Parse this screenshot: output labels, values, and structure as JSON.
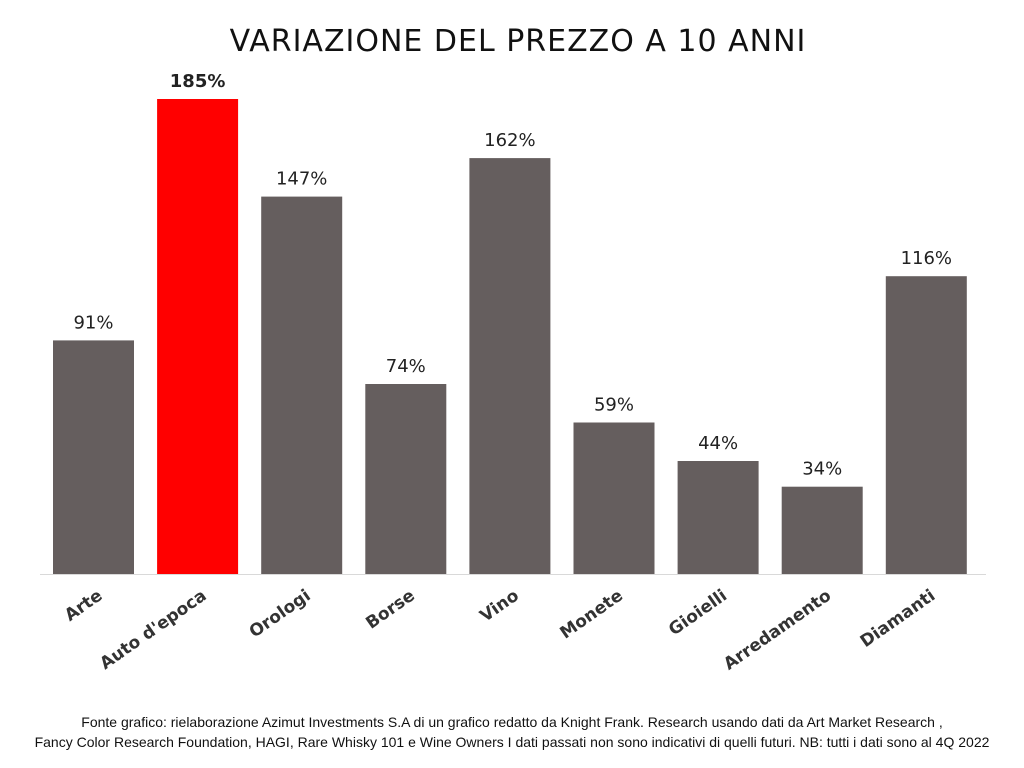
{
  "chart_data": {
    "type": "bar",
    "title": "VARIAZIONE DEL PREZZO A 10 ANNI",
    "xlabel": "",
    "ylabel": "",
    "ylim": [
      0,
      200
    ],
    "grid": false,
    "categories": [
      "Arte",
      "Auto d'epoca",
      "Orologi",
      "Borse",
      "Vino",
      "Monete",
      "Gioielli",
      "Arredamento",
      "Diamanti"
    ],
    "values": [
      91,
      185,
      147,
      74,
      162,
      59,
      44,
      34,
      116
    ],
    "labels": [
      "91%",
      "185%",
      "147%",
      "74%",
      "162%",
      "59%",
      "44%",
      "34%",
      "116%"
    ],
    "highlight_index": 1,
    "colors": {
      "bar": "#655e5e",
      "highlight": "#ff0000",
      "axis": "#d9d9d9"
    }
  },
  "source": {
    "line1": "Fonte grafico: rielaborazione Azimut Investments S.A di un grafico redatto da Knight Frank. Research usando dati da Art Market Research ,",
    "line2": "Fancy Color Research Foundation, HAGI, Rare Whisky 101 e Wine Owners I dati passati non sono indicativi di quelli futuri. NB: tutti i dati sono al 4Q 2022"
  }
}
